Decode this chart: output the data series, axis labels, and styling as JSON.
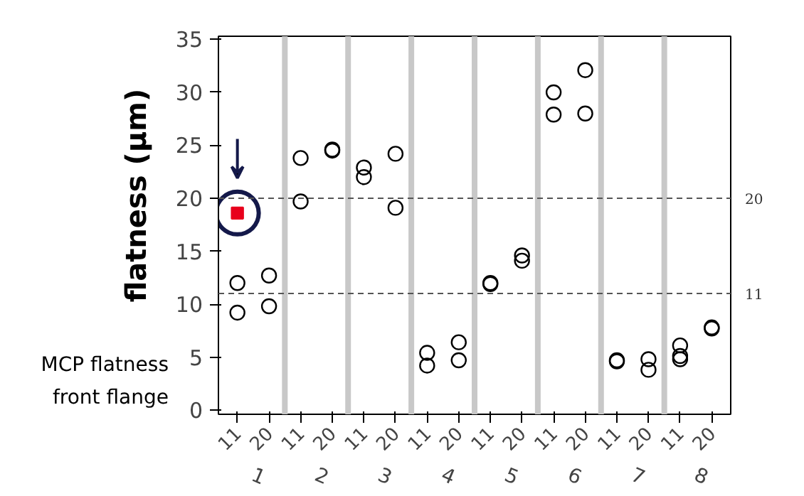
{
  "chart_data": {
    "type": "scatter",
    "ylabel": "flatness (µm)",
    "categories": [
      "11",
      "20",
      "11",
      "20",
      "11",
      "20",
      "11",
      "20",
      "11",
      "20",
      "11",
      "20",
      "11",
      "20",
      "11",
      "20"
    ],
    "annotations": [
      "MCP flatness",
      "front flange",
      "1",
      "2",
      "3",
      "4",
      "5",
      "6",
      "7",
      "8"
    ],
    "series": [
      {
        "color": "#000000",
        "marker": "circle",
        "values": [
          12.0,
          12.7,
          23.8,
          24.6,
          22.9,
          24.2,
          5.4,
          6.4,
          12.0,
          14.6,
          30.0,
          32.1,
          4.7,
          4.8,
          6.1,
          7.8
        ]
      },
      {
        "color": "#000000",
        "marker": "circle",
        "values": [
          9.2,
          9.8,
          19.7,
          24.5,
          22.0,
          19.1,
          4.2,
          4.7,
          11.9,
          14.1,
          27.9,
          28.0,
          4.6,
          3.8,
          5.1,
          7.7
        ]
      },
      {
        "color": "#000000",
        "marker": "circle",
        "values": [
          null,
          null,
          null,
          null,
          null,
          null,
          null,
          null,
          null,
          null,
          null,
          null,
          null,
          null,
          4.8,
          null
        ]
      },
      {
        "color": "#e8001c",
        "marker": "square",
        "values": [
          18.6,
          null,
          null,
          null,
          null,
          null,
          null,
          null,
          null,
          null,
          null,
          null,
          null,
          null,
          null,
          null
        ]
      }
    ],
    "ylim": [
      -0.4,
      35.3
    ],
    "yticks": [
      0,
      5,
      10,
      15,
      20,
      25,
      30,
      35
    ],
    "ref_lines": [
      {
        "axis": "y",
        "value": 20,
        "label": "20",
        "color": "#555555",
        "line_style": "dashed"
      },
      {
        "axis": "y",
        "value": 11,
        "label": "11",
        "color": "#555555",
        "line_style": "dashed"
      }
    ],
    "grid": false
  }
}
